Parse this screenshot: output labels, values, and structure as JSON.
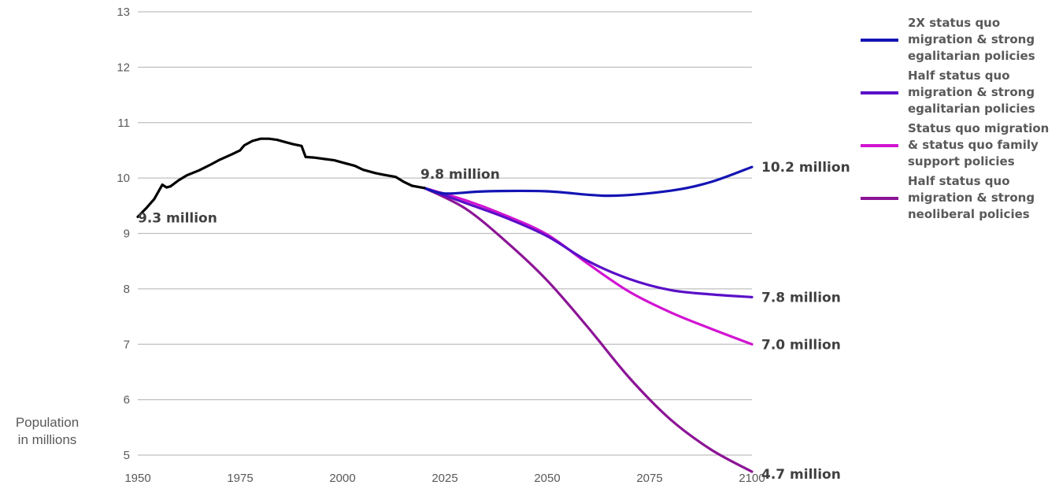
{
  "chart_data": {
    "type": "line",
    "ylabel_lines": [
      "Population",
      "in millions"
    ],
    "xlim": [
      1950,
      2100
    ],
    "ylim": [
      5,
      13
    ],
    "x_ticks": [
      1950,
      1975,
      2000,
      2025,
      2050,
      2075,
      2100
    ],
    "y_ticks": [
      5,
      6,
      7,
      8,
      9,
      10,
      11,
      12,
      13
    ],
    "grid": "horizontal",
    "legend_position": "right",
    "historical": {
      "color": "#000000",
      "points": [
        [
          1950,
          9.3
        ],
        [
          1952,
          9.45
        ],
        [
          1954,
          9.62
        ],
        [
          1956,
          9.88
        ],
        [
          1957,
          9.83
        ],
        [
          1958,
          9.85
        ],
        [
          1960,
          9.96
        ],
        [
          1962,
          10.05
        ],
        [
          1965,
          10.14
        ],
        [
          1968,
          10.25
        ],
        [
          1970,
          10.33
        ],
        [
          1973,
          10.43
        ],
        [
          1975,
          10.5
        ],
        [
          1976,
          10.59
        ],
        [
          1978,
          10.67
        ],
        [
          1980,
          10.71
        ],
        [
          1982,
          10.71
        ],
        [
          1984,
          10.69
        ],
        [
          1986,
          10.65
        ],
        [
          1988,
          10.61
        ],
        [
          1990,
          10.58
        ],
        [
          1991,
          10.38
        ],
        [
          1993,
          10.37
        ],
        [
          1995,
          10.35
        ],
        [
          1998,
          10.32
        ],
        [
          2000,
          10.28
        ],
        [
          2003,
          10.22
        ],
        [
          2005,
          10.15
        ],
        [
          2008,
          10.09
        ],
        [
          2010,
          10.06
        ],
        [
          2013,
          10.02
        ],
        [
          2015,
          9.93
        ],
        [
          2017,
          9.86
        ],
        [
          2020,
          9.82
        ]
      ]
    },
    "series": [
      {
        "name": "2X status quo migration & strong egalitarian policies",
        "name_lines": [
          "2X status quo",
          "migration & strong",
          "egalitarian policies"
        ],
        "color": "#1414b4",
        "points": [
          [
            2020,
            9.82
          ],
          [
            2025,
            9.72
          ],
          [
            2035,
            9.76
          ],
          [
            2050,
            9.76
          ],
          [
            2065,
            9.68
          ],
          [
            2080,
            9.77
          ],
          [
            2090,
            9.93
          ],
          [
            2100,
            10.2
          ]
        ]
      },
      {
        "name": "Half status quo migration & strong egalitarian policies",
        "name_lines": [
          "Half status quo",
          "migration & strong",
          "egalitarian policies"
        ],
        "color": "#5a0fc8",
        "points": [
          [
            2020,
            9.82
          ],
          [
            2030,
            9.55
          ],
          [
            2040,
            9.28
          ],
          [
            2050,
            8.95
          ],
          [
            2060,
            8.5
          ],
          [
            2070,
            8.18
          ],
          [
            2080,
            7.98
          ],
          [
            2090,
            7.9
          ],
          [
            2100,
            7.85
          ]
        ]
      },
      {
        "name": "Status quo migration & status quo family support policies",
        "name_lines": [
          "Status quo migration",
          "& status quo family",
          "support policies"
        ],
        "color": "#d214d2",
        "points": [
          [
            2020,
            9.82
          ],
          [
            2030,
            9.6
          ],
          [
            2040,
            9.32
          ],
          [
            2050,
            8.98
          ],
          [
            2060,
            8.45
          ],
          [
            2070,
            7.95
          ],
          [
            2080,
            7.58
          ],
          [
            2090,
            7.28
          ],
          [
            2100,
            7.0
          ]
        ]
      },
      {
        "name": "Half status quo migration & strong neoliberal policies",
        "name_lines": [
          "Half status quo",
          "migration & strong",
          "neoliberal policies"
        ],
        "color": "#8c1496",
        "points": [
          [
            2020,
            9.82
          ],
          [
            2030,
            9.45
          ],
          [
            2040,
            8.85
          ],
          [
            2050,
            8.15
          ],
          [
            2060,
            7.3
          ],
          [
            2070,
            6.4
          ],
          [
            2080,
            5.65
          ],
          [
            2090,
            5.1
          ],
          [
            2100,
            4.7
          ]
        ]
      }
    ],
    "annotations": [
      {
        "text": "9.3 million",
        "x": 1950,
        "y": 9.3
      },
      {
        "text": "9.8 million",
        "x": 2020,
        "y": 9.82
      },
      {
        "text": "10.2 million",
        "x": 2100,
        "y": 10.2
      },
      {
        "text": "7.8 million",
        "x": 2100,
        "y": 7.85
      },
      {
        "text": "7.0 million",
        "x": 2100,
        "y": 7.0
      },
      {
        "text": "4.7 million",
        "x": 2100,
        "y": 4.7
      }
    ]
  }
}
